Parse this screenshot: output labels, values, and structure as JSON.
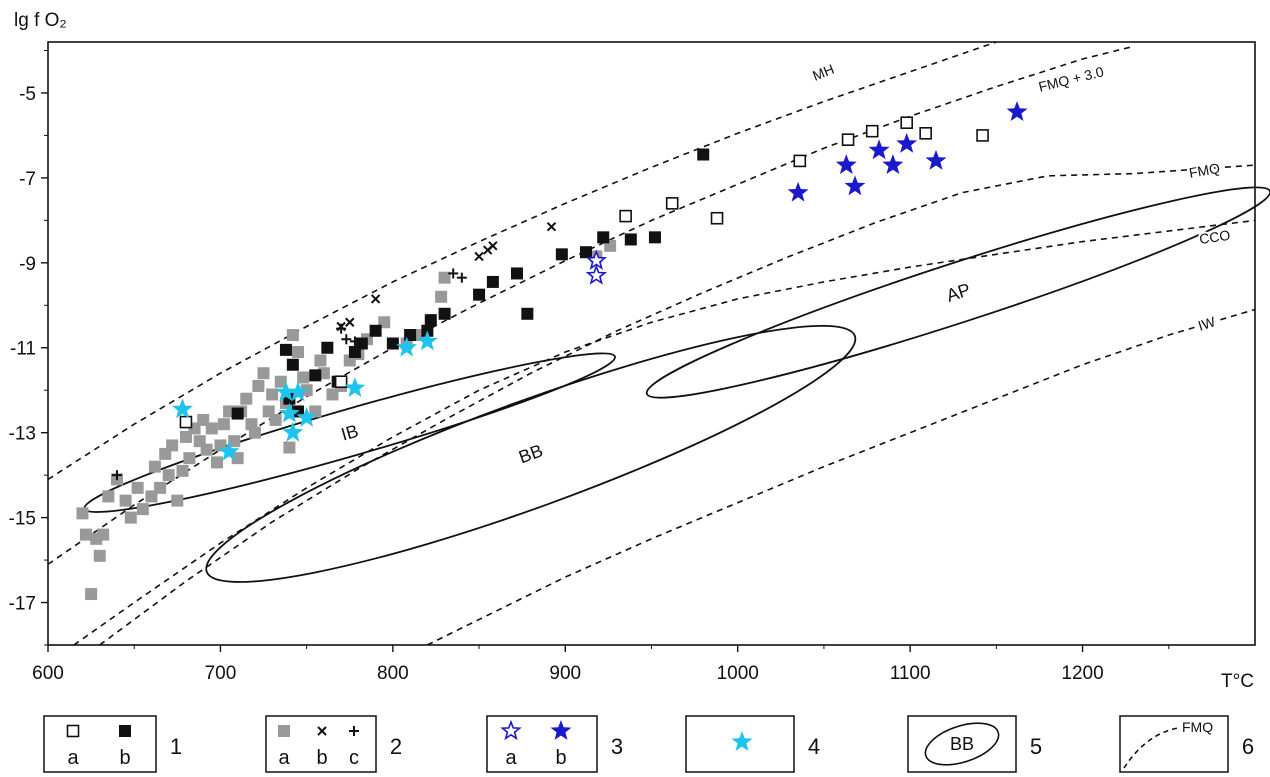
{
  "chart_data": {
    "type": "scatter",
    "ylabel": "lg f O₂",
    "xlabel": "T°C",
    "xlim": [
      600,
      1300
    ],
    "ylim": [
      -18,
      -3.8
    ],
    "x_ticks": [
      600,
      700,
      800,
      900,
      1000,
      1100,
      1200
    ],
    "y_ticks": [
      -5,
      -7,
      -9,
      -11,
      -13,
      -15,
      -17
    ],
    "buffer_curves": [
      {
        "name": "MH",
        "points": [
          [
            600,
            -14.1
          ],
          [
            650,
            -12.8
          ],
          [
            700,
            -11.6
          ],
          [
            750,
            -10.5
          ],
          [
            800,
            -9.45
          ],
          [
            850,
            -8.5
          ],
          [
            900,
            -7.6
          ],
          [
            950,
            -6.75
          ],
          [
            1000,
            -5.95
          ],
          [
            1050,
            -5.2
          ],
          [
            1100,
            -4.5
          ],
          [
            1150,
            -3.8
          ]
        ]
      },
      {
        "name": "FMQ + 3.0",
        "points": [
          [
            600,
            -16.1
          ],
          [
            650,
            -14.7
          ],
          [
            700,
            -13.4
          ],
          [
            750,
            -12.15
          ],
          [
            800,
            -11.0
          ],
          [
            850,
            -9.95
          ],
          [
            900,
            -8.95
          ],
          [
            950,
            -8.0
          ],
          [
            1000,
            -7.15
          ],
          [
            1050,
            -6.3
          ],
          [
            1100,
            -5.55
          ],
          [
            1150,
            -4.85
          ],
          [
            1200,
            -4.2
          ],
          [
            1230,
            -3.9
          ]
        ]
      },
      {
        "name": "FMQ",
        "points": [
          [
            630,
            -18.0
          ],
          [
            680,
            -16.5
          ],
          [
            730,
            -15.1
          ],
          [
            780,
            -13.85
          ],
          [
            830,
            -12.7
          ],
          [
            880,
            -11.6
          ],
          [
            930,
            -10.6
          ],
          [
            980,
            -9.7
          ],
          [
            1030,
            -8.85
          ],
          [
            1080,
            -8.05
          ],
          [
            1130,
            -7.35
          ],
          [
            1180,
            -6.95
          ],
          [
            1230,
            -6.9
          ],
          [
            1300,
            -6.7
          ]
        ]
      },
      {
        "name": "CCO",
        "points": [
          [
            615,
            -18.0
          ],
          [
            650,
            -17.0
          ],
          [
            700,
            -15.6
          ],
          [
            750,
            -14.3
          ],
          [
            800,
            -13.1
          ],
          [
            850,
            -12.0
          ],
          [
            900,
            -11.1
          ],
          [
            950,
            -10.4
          ],
          [
            1000,
            -9.85
          ],
          [
            1050,
            -9.45
          ],
          [
            1100,
            -9.1
          ],
          [
            1150,
            -8.8
          ],
          [
            1200,
            -8.5
          ],
          [
            1250,
            -8.25
          ],
          [
            1300,
            -8.0
          ]
        ]
      },
      {
        "name": "IW",
        "points": [
          [
            820,
            -18.0
          ],
          [
            860,
            -17.2
          ],
          [
            900,
            -16.4
          ],
          [
            950,
            -15.5
          ],
          [
            1000,
            -14.65
          ],
          [
            1050,
            -13.8
          ],
          [
            1100,
            -13.0
          ],
          [
            1150,
            -12.2
          ],
          [
            1200,
            -11.4
          ],
          [
            1250,
            -10.7
          ],
          [
            1300,
            -10.1
          ]
        ]
      }
    ],
    "fields": [
      {
        "name": "IB",
        "cx": 775,
        "cy": -13.0,
        "rx": 160,
        "ry": 0.55,
        "angle_deg": -16
      },
      {
        "name": "BB",
        "cx": 880,
        "cy": -13.5,
        "rx": 200,
        "ry": 1.25,
        "angle_deg": -20
      },
      {
        "name": "AP",
        "cx": 1128,
        "cy": -9.7,
        "rx": 190,
        "ry": 0.7,
        "angle_deg": -18
      }
    ],
    "series": [
      {
        "name": "1a",
        "marker": "open-square",
        "color": "#000000",
        "x": [
          680,
          770,
          935,
          962,
          988,
          1036,
          1064,
          1078,
          1098,
          1109,
          1142
        ],
        "y": [
          -12.75,
          -11.8,
          -7.9,
          -7.6,
          -7.95,
          -6.6,
          -6.1,
          -5.9,
          -5.7,
          -5.95,
          -6.0
        ]
      },
      {
        "name": "1b",
        "marker": "filled-square",
        "color": "#000000",
        "x": [
          710,
          738,
          740,
          742,
          745,
          755,
          762,
          768,
          778,
          782,
          790,
          800,
          810,
          820,
          822,
          830,
          850,
          858,
          872,
          878,
          898,
          912,
          922,
          938,
          952,
          980
        ],
        "y": [
          -12.55,
          -11.05,
          -12.2,
          -11.4,
          -12.5,
          -11.65,
          -11.0,
          -11.8,
          -11.1,
          -10.9,
          -10.6,
          -10.9,
          -10.7,
          -10.6,
          -10.35,
          -10.2,
          -9.75,
          -9.45,
          -9.25,
          -10.2,
          -8.8,
          -8.75,
          -8.4,
          -8.45,
          -8.4,
          -6.45
        ]
      },
      {
        "name": "2a",
        "marker": "gray-square",
        "color": "#999999",
        "x": [
          620,
          622,
          625,
          628,
          630,
          632,
          635,
          640,
          645,
          648,
          652,
          655,
          660,
          662,
          665,
          668,
          670,
          672,
          675,
          678,
          680,
          682,
          685,
          688,
          690,
          692,
          695,
          698,
          700,
          702,
          705,
          708,
          710,
          712,
          715,
          718,
          720,
          722,
          725,
          728,
          730,
          732,
          735,
          738,
          740,
          742,
          745,
          748,
          750,
          755,
          758,
          760,
          765,
          770,
          775,
          780,
          785,
          795,
          808,
          815,
          828,
          830,
          918,
          926
        ],
        "y": [
          -14.9,
          -15.4,
          -16.8,
          -15.5,
          -15.9,
          -15.4,
          -14.5,
          -14.1,
          -14.6,
          -15.0,
          -14.3,
          -14.8,
          -14.5,
          -13.8,
          -14.3,
          -13.5,
          -14.0,
          -13.3,
          -14.6,
          -13.9,
          -13.1,
          -13.6,
          -12.9,
          -13.2,
          -12.7,
          -13.4,
          -12.9,
          -13.7,
          -13.3,
          -12.8,
          -12.5,
          -13.2,
          -13.6,
          -12.5,
          -12.2,
          -12.8,
          -13.0,
          -11.9,
          -11.6,
          -12.5,
          -12.1,
          -12.7,
          -11.8,
          -12.3,
          -13.35,
          -10.7,
          -11.1,
          -11.7,
          -12.0,
          -12.5,
          -11.3,
          -11.6,
          -12.1,
          -11.9,
          -11.3,
          -11.15,
          -10.8,
          -10.4,
          -10.9,
          -10.7,
          -9.8,
          -9.35,
          -8.85,
          -8.6
        ]
      },
      {
        "name": "2b",
        "marker": "cross",
        "color": "#000000",
        "x": [
          770,
          775,
          790,
          850,
          855,
          858,
          892
        ],
        "y": [
          -10.5,
          -10.4,
          -9.85,
          -8.85,
          -8.7,
          -8.6,
          -8.15
        ]
      },
      {
        "name": "2c",
        "marker": "plus",
        "color": "#000000",
        "x": [
          640,
          770,
          773,
          778,
          835,
          840
        ],
        "y": [
          -14.0,
          -10.55,
          -10.8,
          -10.85,
          -9.25,
          -9.35
        ]
      },
      {
        "name": "3a",
        "marker": "open-star",
        "color": "#1a1acc",
        "x": [
          918,
          918
        ],
        "y": [
          -8.95,
          -9.3
        ]
      },
      {
        "name": "3b",
        "marker": "filled-star",
        "color": "#1a1acc",
        "x": [
          1035,
          1063,
          1068,
          1082,
          1090,
          1098,
          1115,
          1162
        ],
        "y": [
          -7.35,
          -6.7,
          -7.2,
          -6.35,
          -6.7,
          -6.2,
          -6.6,
          -5.45
        ]
      },
      {
        "name": "4",
        "marker": "cyan-star",
        "color": "#1ec3ee",
        "x": [
          678,
          705,
          738,
          740,
          742,
          745,
          750,
          778,
          808,
          820
        ],
        "y": [
          -12.45,
          -13.45,
          -12.05,
          -12.55,
          -13.0,
          -12.05,
          -12.65,
          -11.95,
          -11.0,
          -10.85
        ]
      }
    ],
    "legend": [
      {
        "number": "1",
        "sublabels": [
          "a",
          "b"
        ]
      },
      {
        "number": "2",
        "sublabels": [
          "a",
          "b",
          "c"
        ]
      },
      {
        "number": "3",
        "sublabels": [
          "a",
          "b"
        ]
      },
      {
        "number": "4",
        "sublabels": []
      },
      {
        "number": "5",
        "sublabels": [],
        "sample_field": "BB"
      },
      {
        "number": "6",
        "sublabels": [],
        "sample_curve": "FMQ"
      }
    ]
  }
}
